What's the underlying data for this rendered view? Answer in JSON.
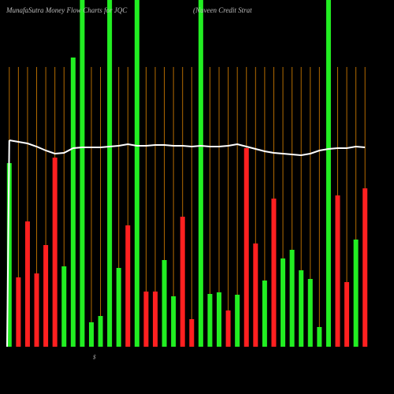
{
  "chart_data": {
    "type": "bar",
    "title": "MunafaSutra  Money Flow  Charts for JQC",
    "subtitle": "(Nuveen  Credit Strat",
    "axis_note": "$",
    "categories": [
      null,
      null,
      null,
      null,
      null,
      null,
      null,
      null,
      null,
      null,
      null,
      null,
      null,
      null,
      null,
      null,
      null,
      null,
      null,
      null,
      null,
      null,
      null,
      null,
      null,
      null,
      null,
      null,
      null,
      null,
      null,
      null,
      null,
      null,
      null,
      null,
      null,
      null,
      null,
      null
    ],
    "values": [
      233,
      88,
      159,
      93,
      129,
      240,
      102,
      367,
      440,
      31,
      39,
      440,
      100,
      154,
      440,
      70,
      70,
      110,
      64,
      165,
      35,
      440,
      67,
      69,
      46,
      66,
      252,
      131,
      84,
      188,
      112,
      123,
      97,
      86,
      25,
      440,
      192,
      82,
      136,
      201
    ],
    "colors": [
      "#22ee22",
      "#ff2020",
      "#ff2020",
      "#ff2020",
      "#ff2020",
      "#ff2020",
      "#22ee22",
      "#22ee22",
      "#22ee22",
      "#22ee22",
      "#22ee22",
      "#22ee22",
      "#22ee22",
      "#ff2020",
      "#22ee22",
      "#ff2020",
      "#ff2020",
      "#22ee22",
      "#22ee22",
      "#ff2020",
      "#ff2020",
      "#22ee22",
      "#22ee22",
      "#22ee22",
      "#ff2020",
      "#22ee22",
      "#ff2020",
      "#ff2020",
      "#22ee22",
      "#ff2020",
      "#22ee22",
      "#22ee22",
      "#22ee22",
      "#22ee22",
      "#22ee22",
      "#22ee22",
      "#ff2020",
      "#ff2020",
      "#22ee22",
      "#ff2020"
    ],
    "line": {
      "color": "#ffffff",
      "values": [
        262,
        260,
        258,
        254,
        249,
        245,
        246,
        252,
        253,
        253,
        253,
        254,
        255,
        257,
        255,
        255,
        256,
        256,
        255,
        255,
        254,
        255,
        254,
        254,
        255,
        257,
        254,
        251,
        248,
        246,
        245,
        244,
        243,
        245,
        249,
        251,
        252,
        252,
        254,
        253
      ]
    },
    "ylim": [
      0,
      440
    ]
  }
}
